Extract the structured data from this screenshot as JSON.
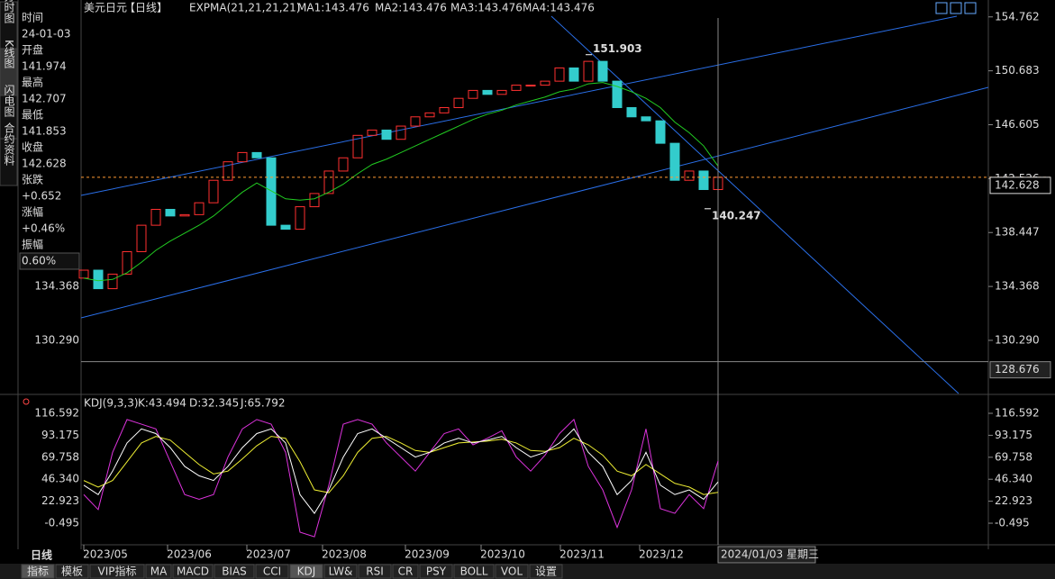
{
  "sidebar_tabs": [
    "分时图",
    "K线图",
    "闪电图",
    "合约资料"
  ],
  "info_panel": [
    [
      "时间",
      "24-01-03"
    ],
    [
      "开盘",
      "141.974"
    ],
    [
      "最高",
      "142.707"
    ],
    [
      "最低",
      "141.853"
    ],
    [
      "收盘",
      "142.628"
    ],
    [
      "张跌",
      "+0.652"
    ],
    [
      "涨幅",
      "+0.46%"
    ],
    [
      "振幅",
      "0.60%"
    ]
  ],
  "header": {
    "symbol": "美元日元",
    "period": "【日线】",
    "indicator": "EXPMA(21,21,21,21)",
    "ma1": "MA1:143.476",
    "ma2": "MA2:143.476",
    "ma3": "MA3:143.476",
    "ma4": "MA4:143.476"
  },
  "price_chart": {
    "ylim": [
      126.2,
      155.7
    ],
    "yticks": [
      154.762,
      150.683,
      146.605,
      142.526,
      138.447,
      134.368,
      {
        "value": 130.29,
        "label": "130.290"
      }
    ],
    "closes": [
      135.6,
      134.2,
      135.3,
      137.0,
      139.0,
      140.2,
      139.7,
      139.8,
      140.7,
      142.4,
      143.8,
      144.5,
      144.1,
      139.0,
      138.7,
      140.4,
      141.4,
      143.1,
      144.1,
      145.8,
      146.2,
      145.5,
      146.5,
      147.2,
      147.5,
      147.9,
      148.6,
      149.2,
      148.9,
      149.2,
      149.6,
      149.6,
      149.9,
      150.9,
      149.9,
      151.4,
      149.9,
      147.9,
      147.2,
      146.9,
      145.2,
      142.4,
      143.1,
      141.7,
      142.628
    ],
    "ema": [
      135.0,
      134.8,
      134.9,
      135.4,
      136.2,
      137.1,
      137.8,
      138.4,
      139.0,
      139.7,
      140.6,
      141.5,
      142.2,
      141.6,
      141.0,
      140.9,
      141.0,
      141.5,
      142.1,
      142.9,
      143.6,
      144.0,
      144.5,
      145.0,
      145.5,
      146.0,
      146.5,
      147.0,
      147.4,
      147.7,
      148.1,
      148.4,
      148.7,
      149.1,
      149.3,
      149.7,
      149.8,
      149.5,
      149.1,
      148.6,
      147.9,
      146.8,
      146.0,
      145.0,
      143.476
    ],
    "current": 142.628,
    "cursor": 128.676,
    "high": 151.903,
    "low": 140.247
  },
  "kdj": {
    "title": "KDJ(9,3,3)",
    "k_label": "K:43.494",
    "d_label": "D:32.345",
    "j_label": "J:65.792",
    "ylim": [
      -18.7,
      123.3
    ],
    "yticks": [
      116.592,
      93.175,
      69.758,
      {
        "value": 46.34,
        "label": "46.340"
      },
      22.923,
      -0.495
    ],
    "k": [
      40,
      30,
      55,
      85,
      100,
      95,
      80,
      60,
      50,
      45,
      60,
      80,
      95,
      100,
      85,
      30,
      10,
      35,
      70,
      95,
      100,
      90,
      80,
      70,
      75,
      85,
      90,
      85,
      88,
      92,
      80,
      70,
      75,
      85,
      100,
      75,
      60,
      30,
      45,
      75,
      40,
      30,
      35,
      25,
      43.494
    ],
    "d": [
      45,
      38,
      45,
      65,
      85,
      92,
      88,
      75,
      62,
      52,
      55,
      68,
      82,
      92,
      90,
      65,
      35,
      32,
      50,
      75,
      90,
      92,
      85,
      77,
      75,
      80,
      85,
      86,
      87,
      89,
      85,
      77,
      76,
      80,
      90,
      83,
      72,
      55,
      50,
      62,
      52,
      42,
      38,
      30,
      32.345
    ],
    "j": [
      30,
      14,
      75,
      110,
      105,
      100,
      65,
      30,
      25,
      30,
      70,
      100,
      110,
      105,
      75,
      -10,
      -15,
      40,
      105,
      110,
      105,
      85,
      70,
      55,
      75,
      95,
      100,
      83,
      90,
      98,
      70,
      55,
      72,
      95,
      110,
      60,
      35,
      -5,
      35,
      100,
      15,
      10,
      30,
      15,
      65.792
    ]
  },
  "period_label": "日线",
  "x_labels": [
    "2023/05",
    "2023/06",
    "2023/07",
    "2023/08",
    "2023/09",
    "2023/10",
    "2023/11",
    "2023/12"
  ],
  "cursor_date": "2024/01/03 星期三",
  "bottom_tabs": [
    "指标",
    "模板",
    "VIP指标",
    "MA",
    "MACD",
    "BIAS",
    "CCI",
    "KDJ",
    "LW&",
    "RSI",
    "CR",
    "PSY",
    "BOLL",
    "VOL",
    "设置"
  ]
}
